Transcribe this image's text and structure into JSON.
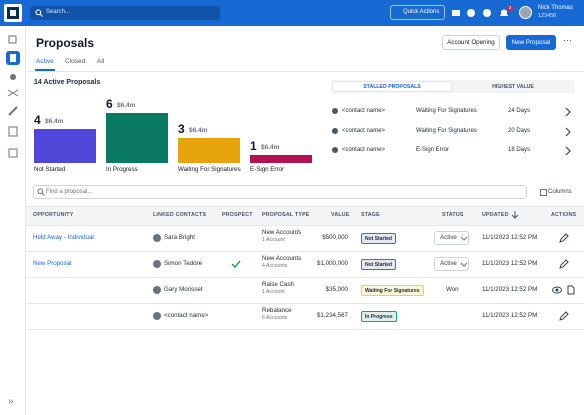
{
  "topbar": {
    "search_placeholder": "Search...",
    "quick_actions": "Quick Actions",
    "notification_count": 3,
    "user_name": "Nick Thomas",
    "user_id": "123456"
  },
  "header": {
    "title": "Proposals",
    "buttons": [
      "Account Opening",
      "New Proposal"
    ]
  },
  "tabs": {
    "items": [
      "Active",
      "Closed",
      "All"
    ],
    "active": 0
  },
  "summary": {
    "title": "14 Active Proposals",
    "bars": [
      {
        "count": 4,
        "amount": "$6.4m",
        "label": "Not Started",
        "color": "#5046d8"
      },
      {
        "count": 6,
        "amount": "$6.4m",
        "label": "In Progress",
        "color": "#0c7a62"
      },
      {
        "count": 3,
        "amount": "$6.4m",
        "label": "Waiting For Signatures",
        "color": "#e6a40d"
      },
      {
        "count": 1,
        "amount": "$6.4m",
        "label": "E-Sign Error",
        "color": "#b3114f"
      }
    ]
  },
  "stalled": {
    "tabs": [
      "STALLED PROPOSALS",
      "HIGHEST VALUE"
    ],
    "active": 0,
    "rows": [
      {
        "contact": "<contact name>",
        "status": "Waiting For Signatures",
        "days": "24 Days"
      },
      {
        "contact": "<contact name>",
        "status": "Waiting For Signatures",
        "days": "20 Days"
      },
      {
        "contact": "<contact name>",
        "status": "E-Sign Error",
        "days": "18 Days"
      }
    ]
  },
  "search": {
    "placeholder": "Find a proposal...",
    "columns_button": "Columns"
  },
  "table": {
    "columns": [
      "OPPORTUNITY",
      "LINKED CONTACTS",
      "PROSPECT",
      "PROPOSAL TYPE",
      "VALUE",
      "STAGE",
      "STATUS",
      "UPDATED",
      "ACTIONS"
    ],
    "rows": [
      {
        "opportunity": "Held Away - Individual",
        "contact": "Sara Bright",
        "prospect": false,
        "type": "New Accounts",
        "accounts": "1 Account",
        "value": "$500,000",
        "stage": "Not Started",
        "stage_color": "#5b6b9a",
        "status": "Active",
        "status_dropdown": true,
        "updated": "11/1/2023 12:52 PM",
        "actions": [
          "edit"
        ]
      },
      {
        "opportunity": "New Proposal",
        "contact": "Simon Tedore",
        "prospect": true,
        "type": "New Accounts",
        "accounts": "4 Accounts",
        "value": "$1,000,000",
        "stage": "Not Started",
        "stage_color": "#5b6b9a",
        "status": "Active",
        "status_dropdown": true,
        "updated": "11/1/2023 12:52 PM",
        "actions": [
          "edit"
        ]
      },
      {
        "opportunity": null,
        "contact": "Gary Morisset",
        "prospect": false,
        "type": "Raise Cash",
        "accounts": "1 Account",
        "value": "$35,000",
        "stage": "Waiting For Signatures",
        "stage_color": "#f5d90a",
        "status": "Won",
        "status_dropdown": false,
        "updated": "11/1/2023 12:52 PM",
        "actions": [
          "view",
          "document"
        ]
      },
      {
        "opportunity": null,
        "contact": "<contact name>",
        "prospect": false,
        "type": "Rebalance",
        "accounts": "6 Accounts",
        "value": "$1,234,567",
        "stage": "In Progress",
        "stage_color": "#1f9d6b",
        "status": null,
        "status_dropdown": false,
        "updated": "11/1/2023 12:52 PM",
        "actions": [
          "edit"
        ]
      }
    ]
  }
}
